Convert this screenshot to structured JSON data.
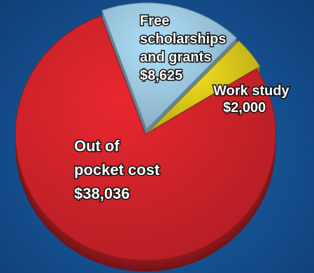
{
  "chart_data": {
    "type": "pie",
    "title": "",
    "slices": [
      {
        "label": "Free scholarships and grants",
        "label_lines": [
          "Free",
          "scholarships",
          "and grants"
        ],
        "value": 8625,
        "value_text": "$8,625",
        "color": "#9cc8df"
      },
      {
        "label": "Work study",
        "label_lines": [
          "Work study"
        ],
        "value": 2000,
        "value_text": "$2,000",
        "color": "#d8c61a"
      },
      {
        "label": "Out of pocket cost",
        "label_lines": [
          "Out of",
          "pocket cost"
        ],
        "value": 38036,
        "value_text": "$38,036",
        "color": "#d0232a"
      }
    ],
    "legend": "none",
    "style": "3d"
  }
}
